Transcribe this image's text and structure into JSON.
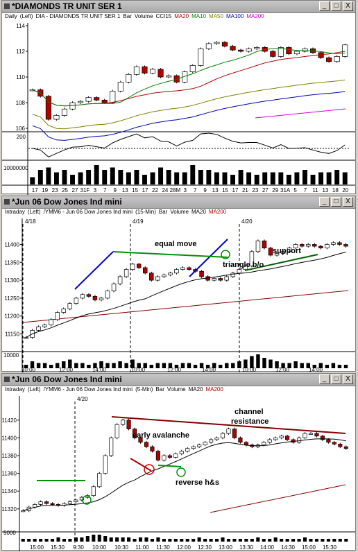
{
  "windows": [
    {
      "title": "*DIAMONDS TR UNIT SER 1",
      "info": [
        "Daily",
        "(Left)",
        "DIA - DIAMONDS TR UNIT SER 1",
        "Bar",
        "Volume",
        "CCI15",
        "MA20",
        "MA10",
        "MA50",
        "MA100",
        "MA200"
      ],
      "info_colors": [
        "#000000",
        "#000000",
        "#000000",
        "#000000",
        "#000000",
        "#000000",
        "#b00000",
        "#008000",
        "#808000",
        "#0000b0",
        "#d000d0"
      ]
    },
    {
      "title": "*Jun 06  Dow Jones Ind mini",
      "info": [
        "Intraday",
        "(Left)",
        "/YMM6 - Jun 06  Dow Jones Ind mini",
        "(15-Min)",
        "Bar",
        "Volume",
        "MA20",
        "MA200"
      ],
      "info_colors": [
        "#000000",
        "#000000",
        "#000000",
        "#000000",
        "#000000",
        "#000000",
        "#000000",
        "#b00000"
      ]
    },
    {
      "title": "*Jun 06  Dow Jones Ind mini",
      "info": [
        "Intraday",
        "(Left)",
        "/YMM6 - Jun 06  Dow Jones Ind mini",
        "(5-Min)",
        "Bar",
        "Volume",
        "MA20",
        "MA200"
      ],
      "info_colors": [
        "#000000",
        "#000000",
        "#000000",
        "#000000",
        "#000000",
        "#000000",
        "#000000",
        "#b00000"
      ]
    }
  ],
  "win_buttons": [
    "_",
    "□",
    "X"
  ],
  "chart_data": [
    {
      "type": "candlestick",
      "timeframe": "Daily",
      "price_ticks": [
        "114",
        "112",
        "110",
        "108",
        "106"
      ],
      "ylim": [
        106,
        114
      ],
      "x_labels": [
        "17",
        "19",
        "23",
        "25",
        "27",
        "31F",
        "3",
        "7",
        "9",
        "13",
        "15",
        "17",
        "22",
        "24",
        "28M",
        "3",
        "7",
        "9",
        "13",
        "15",
        "17",
        "21",
        "23",
        "27",
        "29",
        "31A",
        "5",
        "7",
        "11",
        "13",
        "18",
        "20"
      ],
      "close": [
        109.0,
        108.5,
        106.7,
        107.0,
        107.5,
        108.0,
        108.1,
        108.4,
        108.2,
        108.0,
        108.9,
        109.6,
        110.2,
        110.8,
        110.3,
        110.6,
        110.0,
        110.1,
        109.6,
        110.4,
        110.9,
        112.2,
        112.6,
        112.7,
        112.4,
        112.1,
        112.0,
        112.2,
        112.3,
        112.0,
        111.6,
        112.3,
        111.8,
        112.0,
        112.2,
        111.9,
        111.5,
        111.2,
        111.6,
        112.5
      ],
      "ma_lines": [
        "MA20",
        "MA10",
        "MA50",
        "MA100",
        "MA200"
      ],
      "cci_ticks": [
        "200"
      ],
      "volume_ticks": [
        "10000000"
      ],
      "volume": [
        3,
        6,
        7,
        5,
        6,
        4,
        5,
        6,
        8,
        6,
        7,
        6,
        5,
        6,
        4,
        5,
        7,
        6,
        5,
        5,
        8,
        6,
        6,
        5,
        5,
        4,
        6,
        5,
        4,
        5,
        5,
        5,
        4,
        5,
        6,
        4,
        5,
        5,
        6,
        5
      ]
    },
    {
      "type": "candlestick",
      "timeframe": "15-Min",
      "price_ticks": [
        "11400",
        "11350",
        "11300",
        "11250",
        "11200",
        "11150"
      ],
      "ylim": [
        11120,
        11430
      ],
      "session_labels": [
        "4/18",
        "4/19",
        "4/20"
      ],
      "x_labels": [
        "10:00",
        "12:00",
        "14:00",
        "10:00",
        "12:00",
        "14:00",
        "10:00",
        "12:00",
        "14:00"
      ],
      "close": [
        11140,
        11160,
        11170,
        11175,
        11190,
        11210,
        11220,
        11235,
        11250,
        11260,
        11255,
        11245,
        11250,
        11270,
        11290,
        11310,
        11330,
        11345,
        11335,
        11320,
        11300,
        11310,
        11315,
        11320,
        11330,
        11335,
        11330,
        11325,
        11310,
        11300,
        11305,
        11300,
        11310,
        11320,
        11330,
        11340,
        11380,
        11410,
        11390,
        11370,
        11375,
        11380,
        11390,
        11400,
        11395,
        11400,
        11395,
        11390,
        11400,
        11405,
        11400,
        11395
      ],
      "volume": [
        2,
        4,
        3,
        3,
        2,
        3,
        4,
        5,
        3,
        3,
        2,
        3,
        4,
        3,
        3,
        4,
        3,
        5,
        3,
        3,
        2,
        3,
        3,
        3,
        2,
        3,
        3,
        2,
        3,
        2,
        3,
        2,
        3,
        3,
        4,
        5,
        7,
        8,
        6,
        5,
        4,
        3,
        3,
        4,
        3,
        3,
        2,
        3,
        2,
        3,
        2,
        2
      ],
      "volume_ticks": [
        "10000"
      ],
      "annotations": [
        "equal move",
        "triangle b/o",
        "support"
      ]
    },
    {
      "type": "candlestick",
      "timeframe": "5-Min",
      "price_ticks": [
        "11420",
        "11400",
        "11380",
        "11360",
        "11340",
        "11320"
      ],
      "ylim": [
        11305,
        11430
      ],
      "session_labels": [
        "4/20"
      ],
      "x_labels": [
        "15:00",
        "15:30",
        "9:30",
        "10:00",
        "10:30",
        "11:00",
        "11:30",
        "12:00",
        "12:30",
        "13:00",
        "13:30",
        "14:00",
        "14:30",
        "15:00",
        "15:30"
      ],
      "close": [
        11318,
        11322,
        11325,
        11328,
        11326,
        11325,
        11324,
        11326,
        11328,
        11330,
        11333,
        11335,
        11345,
        11360,
        11380,
        11400,
        11415,
        11420,
        11410,
        11400,
        11395,
        11390,
        11385,
        11375,
        11380,
        11378,
        11382,
        11385,
        11388,
        11390,
        11392,
        11395,
        11398,
        11400,
        11405,
        11410,
        11400,
        11395,
        11392,
        11390,
        11392,
        11395,
        11398,
        11400,
        11402,
        11398,
        11395,
        11400,
        11405,
        11405,
        11402,
        11398,
        11395,
        11393,
        11390,
        11388
      ],
      "volume": [
        2,
        2,
        2,
        2,
        2,
        2,
        3,
        2,
        2,
        3,
        3,
        4,
        5,
        5,
        4,
        3,
        3,
        3,
        3,
        2,
        3,
        3,
        2,
        3,
        2,
        2,
        2,
        2,
        2,
        2,
        3,
        2,
        2,
        2,
        3,
        2,
        2,
        2,
        2,
        2,
        3,
        2,
        2,
        3,
        2,
        2,
        2,
        2,
        3,
        2,
        2,
        2,
        2,
        2,
        2,
        2
      ],
      "volume_ticks": [
        "5000"
      ],
      "annotations": [
        "channel",
        "resistance",
        "early avalanche",
        "reverse h&s"
      ]
    }
  ]
}
